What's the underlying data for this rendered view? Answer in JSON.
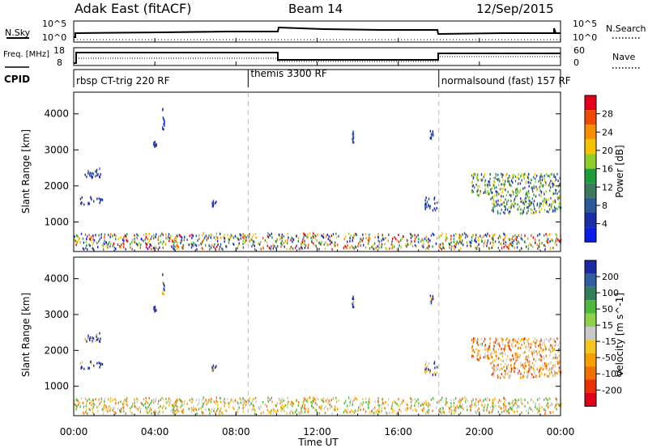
{
  "header": {
    "station": "Adak East (fitACF)",
    "beam": "Beam 14",
    "date": "12/Sep/2015"
  },
  "strip_top": {
    "left_label": "N.Sky",
    "left_ticks": [
      "10^5",
      "10^0"
    ],
    "right_ticks": [
      "10^5",
      "10^0"
    ],
    "right_label": "N.Search"
  },
  "strip_freq": {
    "left_label": "Freq. [MHz]",
    "left_ticks": [
      "18",
      "8"
    ],
    "right_ticks": [
      "60",
      "0"
    ],
    "right_label": "Nave"
  },
  "cpid": {
    "label": "CPID",
    "segments": [
      {
        "name": "rbsp CT-trig 220 RF",
        "start": 0.0,
        "end": 8.6
      },
      {
        "name": "themis 3300 RF",
        "start": 8.6,
        "end": 18.0
      },
      {
        "name": "normalsound (fast) 157 RF",
        "start": 18.0,
        "end": 24.0
      }
    ]
  },
  "x_axis": {
    "title": "Time UT",
    "ticks": [
      "00:00",
      "04:00",
      "08:00",
      "12:00",
      "16:00",
      "20:00",
      "00:00"
    ],
    "range_hours": [
      0,
      24
    ]
  },
  "chart_data": [
    {
      "type": "heatmap",
      "panel": "power",
      "ylabel": "Slant Range [km]",
      "yticks": [
        "4000",
        "3000",
        "2000",
        "1000"
      ],
      "ylim": [
        180,
        4600
      ],
      "colorbar": {
        "title": "Power [dB]",
        "ticks": [
          "28",
          "24",
          "20",
          "16",
          "12",
          "8",
          "4"
        ],
        "colors": [
          "#e4001b",
          "#f04a00",
          "#f98f00",
          "#f7c300",
          "#8fcf2b",
          "#1e9c3c",
          "#3b7a5c",
          "#2e5a9a",
          "#1b2ea8",
          "#0a1ee6"
        ]
      },
      "echo_regions": [
        {
          "t0": 0.5,
          "t1": 1.3,
          "r0": 2150,
          "r1": 2450
        },
        {
          "t0": 0.3,
          "t1": 1.4,
          "r0": 1450,
          "r1": 1650
        },
        {
          "t0": 3.9,
          "t1": 4.1,
          "r0": 3050,
          "r1": 3200
        },
        {
          "t0": 4.35,
          "t1": 4.45,
          "r0": 3450,
          "r1": 4150
        },
        {
          "t0": 6.8,
          "t1": 7.0,
          "r0": 1400,
          "r1": 1550
        },
        {
          "t0": 13.7,
          "t1": 13.8,
          "r0": 3150,
          "r1": 3500
        },
        {
          "t0": 17.3,
          "t1": 17.9,
          "r0": 1250,
          "r1": 1650
        },
        {
          "t0": 17.55,
          "t1": 17.7,
          "r0": 3250,
          "r1": 3550
        },
        {
          "t0": 19.6,
          "t1": 24.0,
          "r0": 1700,
          "r1": 2300
        },
        {
          "t0": 20.5,
          "t1": 24.0,
          "r0": 1200,
          "r1": 1700
        },
        {
          "t0": 0.0,
          "t1": 24.0,
          "r0": 200,
          "r1": 650
        }
      ]
    },
    {
      "type": "heatmap",
      "panel": "velocity",
      "ylabel": "Slant Range [km]",
      "yticks": [
        "4000",
        "3000",
        "2000",
        "1000"
      ],
      "ylim": [
        180,
        4600
      ],
      "colorbar": {
        "title": "Velocity [m s^-1]",
        "ticks": [
          "200",
          "100",
          "50",
          "15",
          "-15",
          "-50",
          "-100",
          "-200"
        ],
        "colors": [
          "#1a2aa6",
          "#2f5fa0",
          "#2e7f5a",
          "#4fb83b",
          "#8ed047",
          "#c9c9c9",
          "#f5c420",
          "#f5a000",
          "#f07000",
          "#e83000",
          "#e00018"
        ]
      }
    }
  ]
}
